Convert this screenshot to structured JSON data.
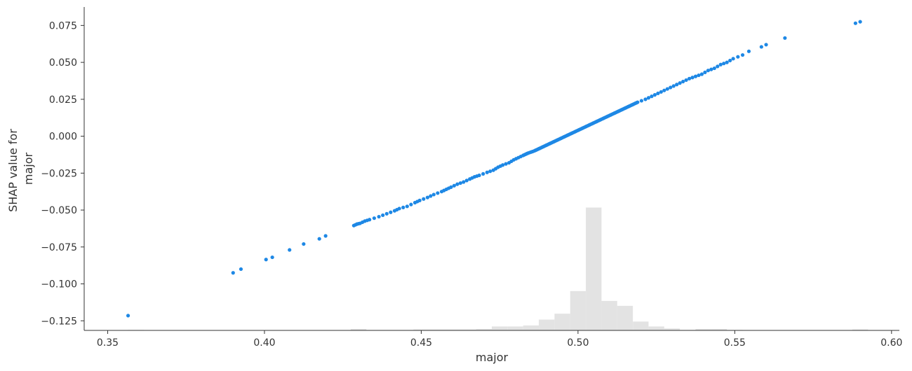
{
  "chart_data": {
    "type": "scatter",
    "xlabel": "major",
    "ylabel_lines": [
      "SHAP value for",
      "major"
    ],
    "xlim": [
      0.3425,
      0.6025
    ],
    "ylim": [
      -0.1315,
      0.0875
    ],
    "xticks": [
      0.35,
      0.4,
      0.45,
      0.5,
      0.55,
      0.6
    ],
    "xtick_labels": [
      "0.35",
      "0.40",
      "0.45",
      "0.50",
      "0.55",
      "0.60"
    ],
    "yticks": [
      0.075,
      0.05,
      0.025,
      0.0,
      -0.025,
      -0.05,
      -0.075,
      -0.1,
      -0.125
    ],
    "ytick_labels": [
      "0.075",
      "0.050",
      "0.025",
      "0.000",
      "−0.025",
      "−0.050",
      "−0.075",
      "−0.100",
      "−0.125"
    ],
    "grid": false,
    "point_color": "#1e88e5",
    "hist_color": "#e3e3e3",
    "series": [
      {
        "x": [
          0.3565,
          0.39,
          0.3925,
          0.4005,
          0.4025,
          0.408,
          0.4125,
          0.4175,
          0.4195,
          0.4285,
          0.4295,
          0.4305,
          0.432,
          0.4335,
          0.4365,
          0.439,
          0.4415,
          0.443,
          0.4455,
          0.448,
          0.4495,
          0.452,
          0.454,
          0.4565,
          0.458,
          0.4595,
          0.4615,
          0.4635,
          0.4655,
          0.467,
          0.4685,
          0.471,
          0.473,
          0.4745,
          0.476,
          0.478,
          0.4795,
          0.481,
          0.4825,
          0.484,
          0.486,
          0.4875,
          0.489,
          0.4905,
          0.492,
          0.4935,
          0.495,
          0.4965,
          0.498,
          0.4995,
          0.501,
          0.5025,
          0.504,
          0.5055,
          0.507,
          0.5085,
          0.51,
          0.5115,
          0.513,
          0.5145,
          0.516,
          0.5175,
          0.519,
          0.5215,
          0.5235,
          0.5255,
          0.5275,
          0.5295,
          0.5315,
          0.5335,
          0.5355,
          0.5375,
          0.5395,
          0.5415,
          0.5435,
          0.5455,
          0.5475,
          0.5495,
          0.5525,
          0.5545,
          0.5585,
          0.56,
          0.566,
          0.5885,
          0.59
        ],
        "y": [
          -0.1215,
          -0.0925,
          -0.09,
          -0.0835,
          -0.082,
          -0.077,
          -0.073,
          -0.0695,
          -0.0675,
          -0.0605,
          -0.0595,
          -0.059,
          -0.0575,
          -0.0565,
          -0.0545,
          -0.0525,
          -0.0505,
          -0.049,
          -0.0475,
          -0.045,
          -0.0435,
          -0.0415,
          -0.0395,
          -0.0375,
          -0.036,
          -0.0345,
          -0.0325,
          -0.031,
          -0.029,
          -0.0275,
          -0.0265,
          -0.0245,
          -0.023,
          -0.021,
          -0.0195,
          -0.018,
          -0.016,
          -0.0145,
          -0.013,
          -0.0115,
          -0.01,
          -0.0085,
          -0.007,
          -0.0055,
          -0.004,
          -0.0025,
          -0.001,
          0.0005,
          0.002,
          0.0035,
          0.005,
          0.0065,
          0.008,
          0.0095,
          0.011,
          0.0125,
          0.014,
          0.0155,
          0.017,
          0.0185,
          0.02,
          0.0215,
          0.023,
          0.025,
          0.027,
          0.029,
          0.031,
          0.033,
          0.035,
          0.037,
          0.039,
          0.0405,
          0.042,
          0.0445,
          0.046,
          0.0485,
          0.05,
          0.0525,
          0.055,
          0.0575,
          0.0605,
          0.062,
          0.0665,
          0.0765,
          0.0775
        ]
      }
    ],
    "histogram": {
      "bin_edges": [
        0.3565,
        0.3615,
        0.4275,
        0.4325,
        0.4375,
        0.4425,
        0.4475,
        0.4525,
        0.4575,
        0.4625,
        0.4675,
        0.4725,
        0.4775,
        0.4825,
        0.4875,
        0.4925,
        0.4975,
        0.5025,
        0.5075,
        0.5125,
        0.5175,
        0.5225,
        0.5275,
        0.5325,
        0.5375,
        0.5425,
        0.5475,
        0.5525,
        0.5875,
        0.5925
      ],
      "heights": [
        0.004,
        0,
        0.012,
        0.004,
        0.004,
        0.004,
        0.008,
        0.008,
        0.008,
        0.008,
        0.012,
        0.032,
        0.032,
        0.04,
        0.088,
        0.136,
        0.32,
        1.0,
        0.24,
        0.2,
        0.072,
        0.032,
        0.016,
        0.004,
        0.012,
        0.012,
        0.004,
        0,
        0.008
      ]
    }
  }
}
